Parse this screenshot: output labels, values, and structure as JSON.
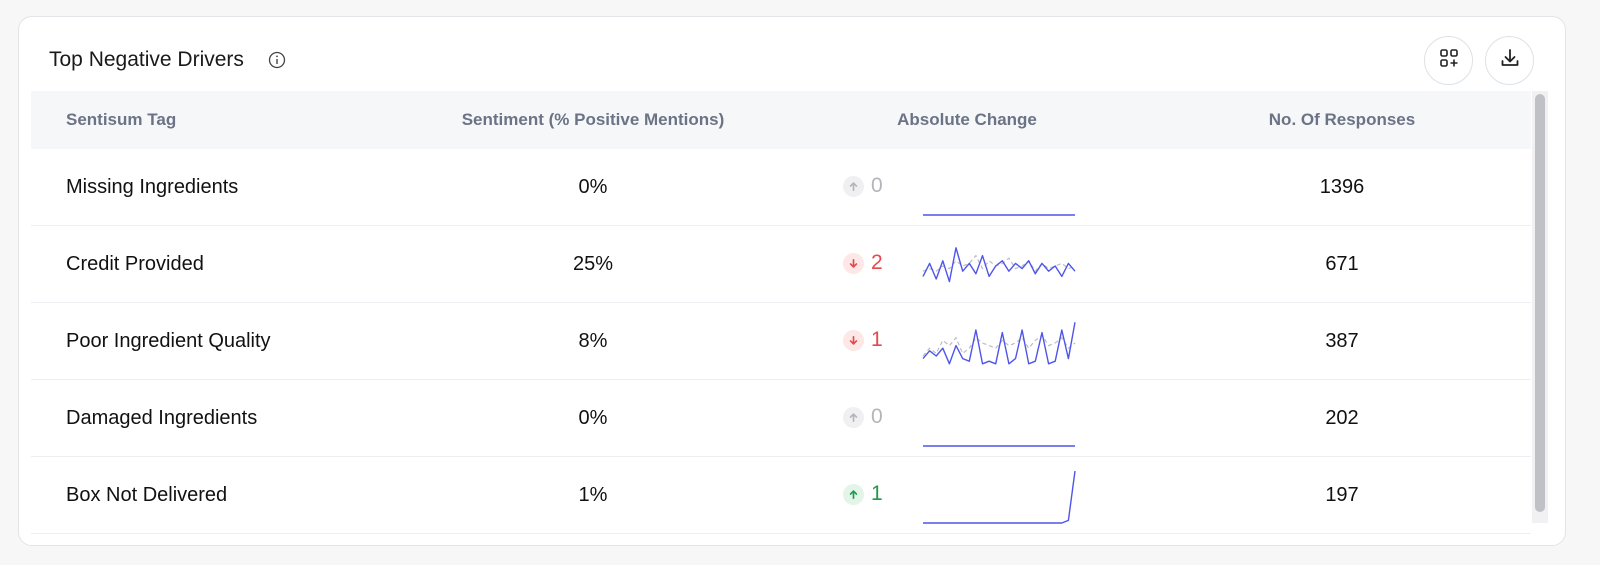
{
  "widget": {
    "title": "Top Negative Drivers",
    "icons": {
      "info": "info-icon",
      "add_widget": "add-widget-icon",
      "download": "download-icon"
    }
  },
  "table": {
    "columns": [
      "Sentisum Tag",
      "Sentiment (% Positive Mentions)",
      "Absolute Change",
      "No. Of Responses"
    ],
    "rows": [
      {
        "tag": "Missing Ingredients",
        "sentiment": "0%",
        "change": "0",
        "direction": "neutral",
        "responses": "1396",
        "trend": [
          0,
          0,
          0,
          0,
          0,
          0,
          0,
          0,
          0,
          0,
          0,
          0,
          0,
          0,
          0,
          0,
          0,
          0,
          0,
          0
        ],
        "baseline": []
      },
      {
        "tag": "Credit Provided",
        "sentiment": "25%",
        "change": "2",
        "direction": "down",
        "responses": "671",
        "trend": [
          30,
          55,
          25,
          60,
          20,
          85,
          40,
          55,
          35,
          70,
          30,
          50,
          60,
          40,
          55,
          45,
          60,
          35,
          55,
          40,
          50,
          30,
          55,
          40
        ],
        "baseline": [
          40,
          45,
          40,
          50,
          45,
          60,
          50,
          55,
          70,
          45,
          60,
          50,
          55,
          65,
          45,
          50,
          60,
          40,
          55,
          45,
          50,
          55,
          45,
          50
        ]
      },
      {
        "tag": "Poor Ingredient Quality",
        "sentiment": "8%",
        "change": "1",
        "direction": "down",
        "responses": "387",
        "trend": [
          20,
          35,
          25,
          40,
          10,
          45,
          20,
          15,
          75,
          10,
          15,
          10,
          70,
          10,
          20,
          75,
          10,
          15,
          70,
          10,
          15,
          75,
          20,
          90
        ],
        "baseline": [
          25,
          40,
          30,
          55,
          45,
          60,
          30,
          40,
          60,
          50,
          45,
          40,
          55,
          45,
          50,
          60,
          40,
          55,
          65,
          45,
          50,
          60,
          40,
          50
        ]
      },
      {
        "tag": "Damaged Ingredients",
        "sentiment": "0%",
        "change": "0",
        "direction": "neutral",
        "responses": "202",
        "trend": [
          0,
          0,
          0,
          0,
          0,
          0,
          0,
          0,
          0,
          0,
          0,
          0,
          0,
          0,
          0,
          0,
          0,
          0,
          0,
          0
        ],
        "baseline": []
      },
      {
        "tag": "Box Not Delivered",
        "sentiment": "1%",
        "change": "1",
        "direction": "up",
        "responses": "197",
        "trend": [
          0,
          0,
          0,
          0,
          0,
          0,
          0,
          0,
          0,
          0,
          0,
          0,
          0,
          0,
          0,
          0,
          0,
          0,
          0,
          0,
          0,
          0,
          5,
          100
        ],
        "baseline": []
      }
    ]
  },
  "colors": {
    "trend_line": "#4f55e8",
    "baseline_line": "#b9bcc3"
  }
}
